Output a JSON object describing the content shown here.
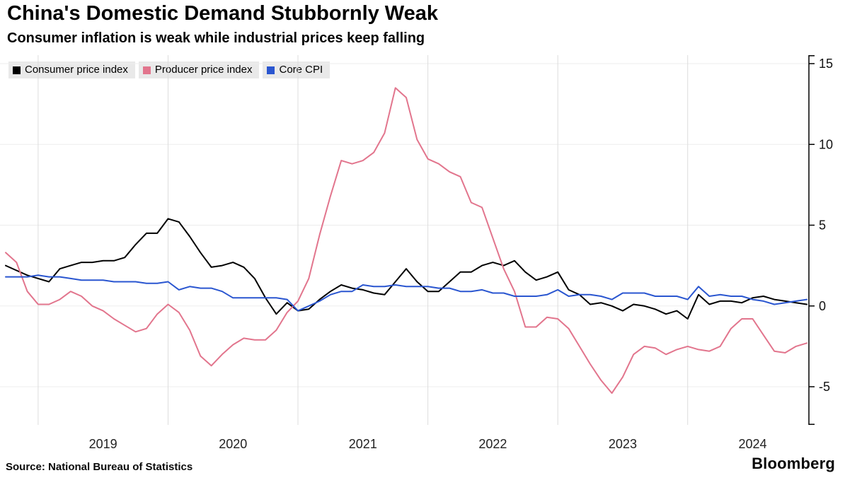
{
  "footer": {
    "source": "Source: National Bureau of Statistics",
    "brand": "Bloomberg"
  },
  "chart_data": {
    "type": "line",
    "title": "China's Domestic Demand Stubbornly Weak",
    "subtitle": "Consumer inflation is weak while industrial prices keep falling",
    "xlabel": "",
    "ylabel": "",
    "grid": true,
    "legend_position": "top-left",
    "x_start": 2018.75,
    "x_step_months": 1,
    "xlim": [
      2018.75,
      2024.9167
    ],
    "y_axis_range": [
      -5,
      15
    ],
    "y_ticks": [
      15,
      10,
      5,
      0,
      -5
    ],
    "x_gridline_years": [
      2019,
      2020,
      2021,
      2022,
      2023,
      2024
    ],
    "x_year_labels": [
      "2019",
      "2020",
      "2021",
      "2022",
      "2023",
      "2024"
    ],
    "series": [
      {
        "id": "consumer-price-index",
        "name": "Consumer price index",
        "color": "#000000",
        "unit": "% y/y",
        "values": [
          2.5,
          2.2,
          1.9,
          1.7,
          1.5,
          2.3,
          2.5,
          2.7,
          2.7,
          2.8,
          2.8,
          3.0,
          3.8,
          4.5,
          4.5,
          5.4,
          5.2,
          4.3,
          3.3,
          2.4,
          2.5,
          2.7,
          2.4,
          1.7,
          0.5,
          -0.5,
          0.2,
          -0.3,
          -0.2,
          0.4,
          0.9,
          1.3,
          1.1,
          1.0,
          0.8,
          0.7,
          1.5,
          2.3,
          1.5,
          0.9,
          0.9,
          1.5,
          2.1,
          2.1,
          2.5,
          2.7,
          2.5,
          2.8,
          2.1,
          1.6,
          1.8,
          2.1,
          1.0,
          0.7,
          0.1,
          0.2,
          0.0,
          -0.3,
          0.1,
          0.0,
          -0.2,
          -0.5,
          -0.3,
          -0.8,
          0.7,
          0.1,
          0.3,
          0.3,
          0.2,
          0.5,
          0.6,
          0.4,
          0.3,
          0.2,
          0.1
        ]
      },
      {
        "id": "producer-price-index",
        "name": "Producer price index",
        "color": "#e2758d",
        "unit": "% y/y",
        "values": [
          3.3,
          2.7,
          0.9,
          0.1,
          0.1,
          0.4,
          0.9,
          0.6,
          0.0,
          -0.3,
          -0.8,
          -1.2,
          -1.6,
          -1.4,
          -0.5,
          0.1,
          -0.4,
          -1.5,
          -3.1,
          -3.7,
          -3.0,
          -2.4,
          -2.0,
          -2.1,
          -2.1,
          -1.5,
          -0.4,
          0.3,
          1.7,
          4.4,
          6.8,
          9.0,
          8.8,
          9.0,
          9.5,
          10.7,
          13.5,
          12.9,
          10.3,
          9.1,
          8.8,
          8.3,
          8.0,
          6.4,
          6.1,
          4.2,
          2.3,
          0.9,
          -1.3,
          -1.3,
          -0.7,
          -0.8,
          -1.4,
          -2.5,
          -3.6,
          -4.6,
          -5.4,
          -4.4,
          -3.0,
          -2.5,
          -2.6,
          -3.0,
          -2.7,
          -2.5,
          -2.7,
          -2.8,
          -2.5,
          -1.4,
          -0.8,
          -0.8,
          -1.8,
          -2.8,
          -2.9,
          -2.5,
          -2.3
        ]
      },
      {
        "id": "core-cpi",
        "name": "Core CPI",
        "color": "#2a56d0",
        "unit": "% y/y",
        "values": [
          1.8,
          1.8,
          1.8,
          1.9,
          1.8,
          1.8,
          1.7,
          1.6,
          1.6,
          1.6,
          1.5,
          1.5,
          1.5,
          1.4,
          1.4,
          1.5,
          1.0,
          1.2,
          1.1,
          1.1,
          0.9,
          0.5,
          0.5,
          0.5,
          0.5,
          0.5,
          0.4,
          -0.3,
          0.0,
          0.3,
          0.7,
          0.9,
          0.9,
          1.3,
          1.2,
          1.2,
          1.3,
          1.2,
          1.2,
          1.2,
          1.1,
          1.1,
          0.9,
          0.9,
          1.0,
          0.8,
          0.8,
          0.6,
          0.6,
          0.6,
          0.7,
          1.0,
          0.6,
          0.7,
          0.7,
          0.6,
          0.4,
          0.8,
          0.8,
          0.8,
          0.6,
          0.6,
          0.6,
          0.4,
          1.2,
          0.6,
          0.7,
          0.6,
          0.6,
          0.4,
          0.3,
          0.1,
          0.2,
          0.3,
          0.4
        ]
      }
    ]
  }
}
